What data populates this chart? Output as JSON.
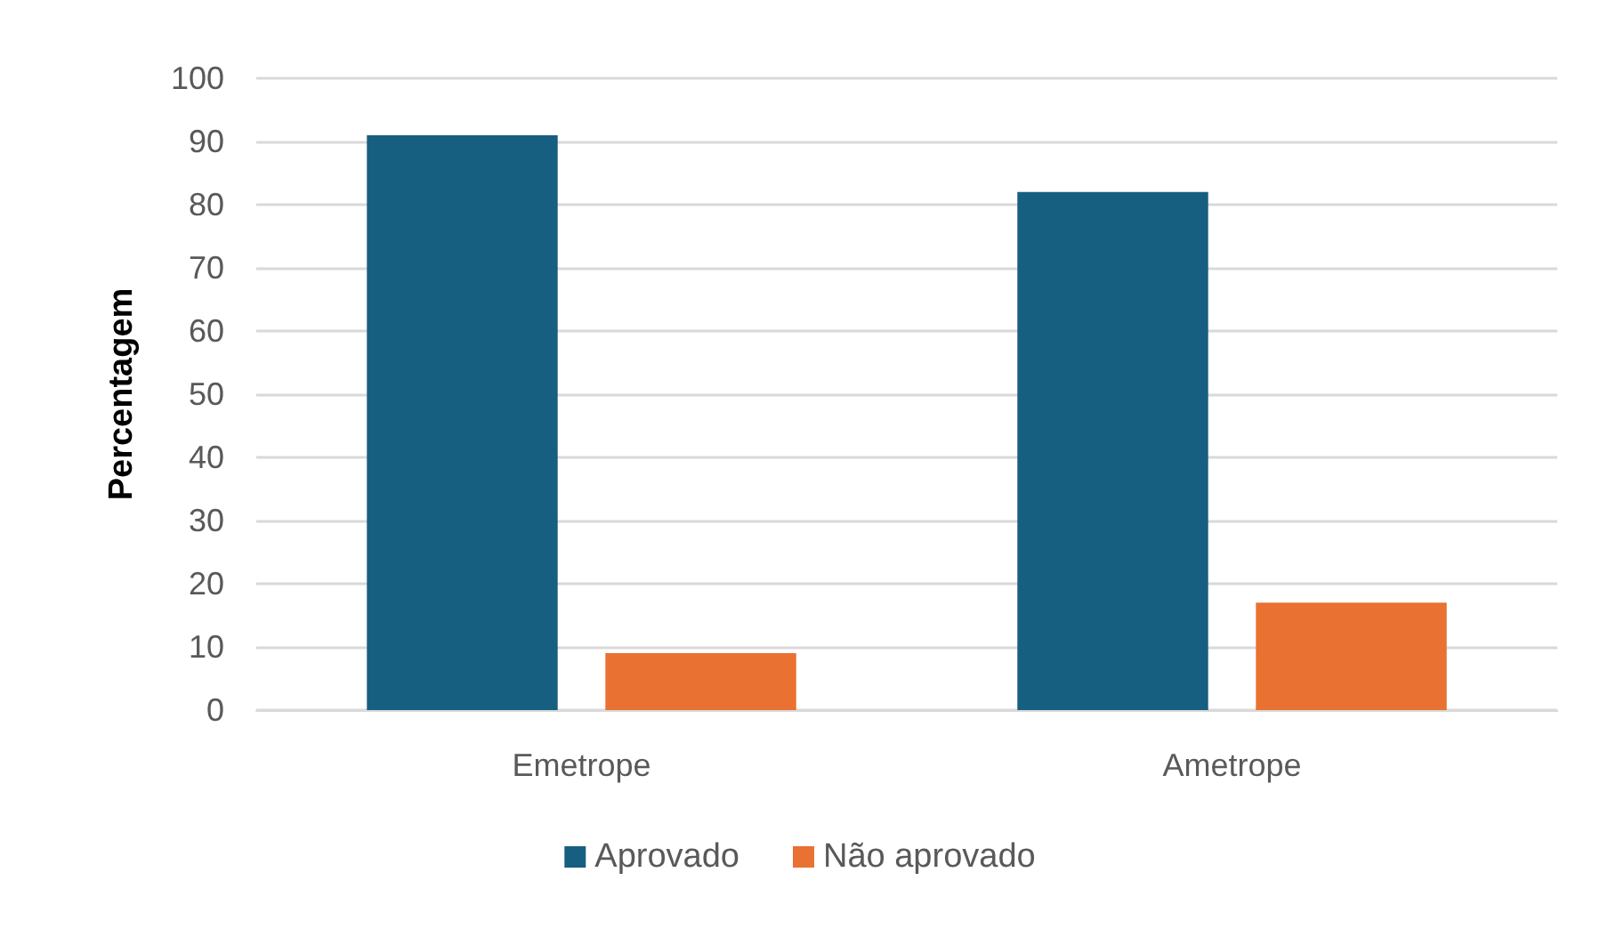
{
  "chart_data": {
    "type": "bar",
    "ylabel": "Percentagem",
    "categories": [
      "Emetrope",
      "Ametrope"
    ],
    "series": [
      {
        "name": "Aprovado",
        "color": "#175f80",
        "values": [
          91,
          82
        ]
      },
      {
        "name": "Não aprovado",
        "color": "#e97132",
        "values": [
          9,
          17
        ]
      }
    ],
    "ylim": [
      0,
      100
    ],
    "yticks": [
      0,
      10,
      20,
      30,
      40,
      50,
      60,
      70,
      80,
      90,
      100
    ],
    "grid": "y",
    "legend": "bottom"
  }
}
